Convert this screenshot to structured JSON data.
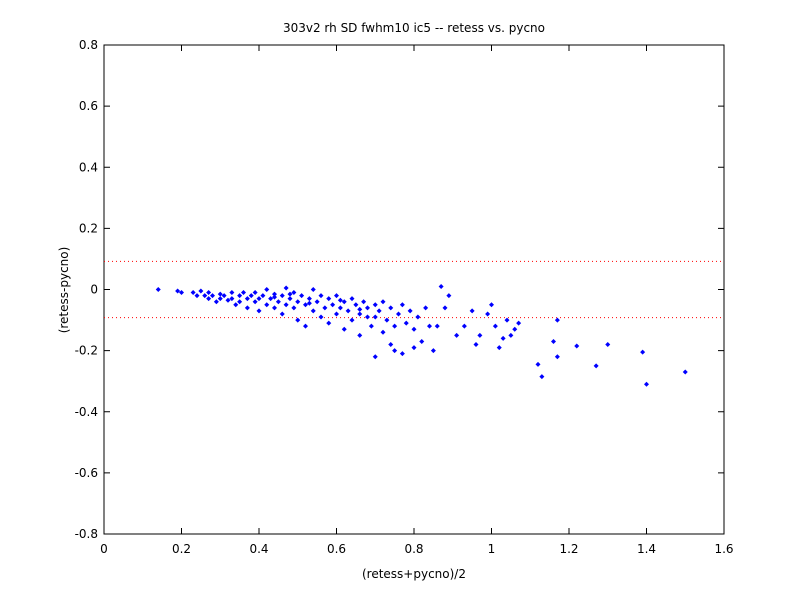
{
  "chart_data": {
    "type": "scatter",
    "title": "303v2 rh SD fwhm10 ic5 -- retess vs. pycno",
    "xlabel": "(retess+pycno)/2",
    "ylabel": "(retess-pycno)",
    "color": "#0000ff",
    "xlim": [
      0,
      1.6
    ],
    "ylim": [
      -0.8,
      0.8
    ],
    "xticks": [
      0,
      0.2,
      0.4,
      0.6,
      0.8,
      1,
      1.2,
      1.4,
      1.6
    ],
    "yticks": [
      -0.8,
      -0.6,
      -0.4,
      -0.2,
      0,
      0.2,
      0.4,
      0.6,
      0.8
    ],
    "reference_lines": [
      0.092,
      -0.092
    ],
    "reference_color": "#ff0000",
    "x": [
      0.23,
      0.24,
      0.25,
      0.26,
      0.27,
      0.27,
      0.28,
      0.29,
      0.3,
      0.3,
      0.31,
      0.32,
      0.33,
      0.33,
      0.34,
      0.35,
      0.35,
      0.36,
      0.37,
      0.37,
      0.38,
      0.39,
      0.39,
      0.4,
      0.4,
      0.41,
      0.42,
      0.42,
      0.43,
      0.44,
      0.44,
      0.45,
      0.46,
      0.46,
      0.47,
      0.47,
      0.48,
      0.49,
      0.49,
      0.5,
      0.5,
      0.51,
      0.52,
      0.52,
      0.53,
      0.54,
      0.54,
      0.55,
      0.56,
      0.56,
      0.57,
      0.58,
      0.58,
      0.59,
      0.6,
      0.6,
      0.61,
      0.62,
      0.62,
      0.63,
      0.64,
      0.64,
      0.65,
      0.66,
      0.66,
      0.67,
      0.68,
      0.68,
      0.69,
      0.7,
      0.7,
      0.71,
      0.72,
      0.72,
      0.73,
      0.74,
      0.75,
      0.76,
      0.77,
      0.78,
      0.79,
      0.8,
      0.81,
      0.83,
      0.84,
      0.44,
      0.53,
      0.61,
      0.66,
      0.48,
      0.14,
      0.19,
      0.2,
      1.5,
      1.4,
      1.39,
      1.3,
      1.27,
      1.22,
      1.17,
      1.16,
      1.17,
      1.12,
      1.13,
      1.07,
      1.06,
      1.05,
      1.03,
      1.02,
      1.04,
      1.0,
      0.99,
      1.01,
      0.97,
      0.96,
      0.95,
      0.93,
      0.91,
      0.89,
      0.87,
      0.88,
      0.86,
      0.85,
      0.82,
      0.8,
      0.77,
      0.74,
      0.7,
      0.75
    ],
    "values": [
      -0.01,
      -0.02,
      -0.005,
      -0.02,
      -0.03,
      -0.01,
      -0.02,
      -0.04,
      -0.015,
      -0.03,
      -0.02,
      -0.035,
      -0.01,
      -0.03,
      -0.05,
      -0.02,
      -0.04,
      -0.01,
      -0.03,
      -0.06,
      -0.02,
      -0.04,
      -0.01,
      -0.03,
      -0.07,
      -0.02,
      -0.05,
      0.0,
      -0.03,
      -0.06,
      -0.015,
      -0.04,
      -0.02,
      -0.08,
      0.005,
      -0.05,
      -0.03,
      -0.06,
      -0.01,
      -0.04,
      -0.1,
      -0.02,
      -0.05,
      -0.12,
      -0.03,
      -0.07,
      0.0,
      -0.04,
      -0.09,
      -0.02,
      -0.06,
      -0.03,
      -0.11,
      -0.05,
      -0.08,
      -0.02,
      -0.06,
      -0.04,
      -0.13,
      -0.07,
      -0.03,
      -0.1,
      -0.05,
      -0.08,
      -0.15,
      -0.04,
      -0.09,
      -0.06,
      -0.12,
      -0.05,
      -0.09,
      -0.07,
      -0.14,
      -0.04,
      -0.1,
      -0.06,
      -0.12,
      -0.08,
      -0.05,
      -0.11,
      -0.07,
      -0.13,
      -0.09,
      -0.06,
      -0.12,
      -0.025,
      -0.045,
      -0.035,
      -0.065,
      -0.015,
      0.0,
      -0.005,
      -0.01,
      -0.27,
      -0.31,
      -0.205,
      -0.18,
      -0.25,
      -0.185,
      -0.1,
      -0.17,
      -0.22,
      -0.245,
      -0.285,
      -0.11,
      -0.13,
      -0.15,
      -0.16,
      -0.19,
      -0.1,
      -0.05,
      -0.08,
      -0.12,
      -0.15,
      -0.18,
      -0.07,
      -0.12,
      -0.15,
      -0.02,
      0.01,
      -0.06,
      -0.12,
      -0.2,
      -0.17,
      -0.19,
      -0.21,
      -0.18,
      -0.22,
      -0.2
    ]
  }
}
